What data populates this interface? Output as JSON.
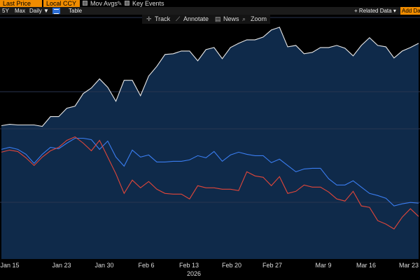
{
  "toolbar": {
    "field1": "Last Price",
    "field2": "Local CCY",
    "mov_avgs": "Mov Avgs",
    "key_events": "Key Events"
  },
  "toolbar2": {
    "range_5y": "5Y",
    "range_max": "Max",
    "period": "Daily ▼",
    "table": "Table",
    "related": "+ Related Data ▾",
    "add_data": "Add Data"
  },
  "tools": {
    "track": "Track",
    "annotate": "Annotate",
    "news": "News",
    "zoom": "Zoom"
  },
  "chart_data": {
    "type": "line",
    "x_ticks": [
      "Jan 15",
      "Jan 23",
      "Jan 30",
      "Feb 6",
      "Feb 13",
      "Feb 20",
      "Feb 27",
      "Mar 9",
      "Mar 16",
      "Mar 23"
    ],
    "xlabel": "2026",
    "series": [
      {
        "color": "#e8e8e8",
        "values": [
          79.1,
          79.3,
          79.2,
          79.2,
          79.2,
          79.0,
          80.4,
          80.4,
          81.6,
          81.9,
          83.7,
          84.5,
          85.8,
          84.6,
          82.6,
          85.6,
          85.6,
          83.4,
          86.2,
          87.6,
          89.3,
          89.4,
          89.8,
          89.8,
          88.4,
          90.0,
          90.3,
          88.7,
          90.3,
          90.9,
          91.4,
          91.4,
          91.8,
          92.8,
          93.2,
          90.4,
          90.6,
          89.4,
          89.6,
          90.3,
          90.3,
          90.6,
          90.2,
          89.1,
          90.6,
          91.7,
          90.6,
          90.4,
          88.8,
          89.8,
          90.3,
          90.9
        ]
      },
      {
        "color": "#3a7df0",
        "values": [
          75.7,
          76.0,
          75.7,
          75.0,
          73.7,
          75.0,
          76.0,
          75.8,
          76.6,
          77.3,
          77.3,
          77.1,
          75.7,
          76.9,
          74.6,
          73.3,
          75.6,
          74.6,
          74.9,
          73.9,
          73.9,
          74.0,
          74.0,
          74.2,
          74.8,
          74.5,
          75.4,
          74.0,
          74.9,
          75.3,
          75.0,
          74.8,
          74.8,
          73.8,
          74.3,
          73.4,
          72.5,
          72.9,
          73.0,
          73.0,
          71.5,
          70.6,
          70.6,
          71.2,
          70.3,
          69.4,
          69.1,
          68.7,
          67.6,
          67.9,
          68.1,
          68.0
        ]
      },
      {
        "color": "#e0463a",
        "values": [
          75.3,
          75.6,
          75.4,
          74.5,
          73.4,
          74.6,
          75.5,
          76.0,
          77.0,
          77.5,
          76.6,
          75.5,
          77.0,
          74.6,
          72.2,
          69.4,
          71.3,
          70.2,
          71.1,
          70.0,
          69.4,
          69.3,
          69.3,
          68.6,
          70.5,
          70.2,
          70.2,
          70.0,
          70.0,
          69.8,
          72.5,
          71.9,
          71.7,
          70.5,
          71.8,
          69.4,
          69.7,
          70.6,
          70.3,
          70.3,
          69.6,
          68.6,
          68.3,
          69.7,
          67.6,
          67.4,
          65.5,
          65.0,
          64.3,
          66.0,
          67.2,
          66.1
        ]
      }
    ]
  }
}
